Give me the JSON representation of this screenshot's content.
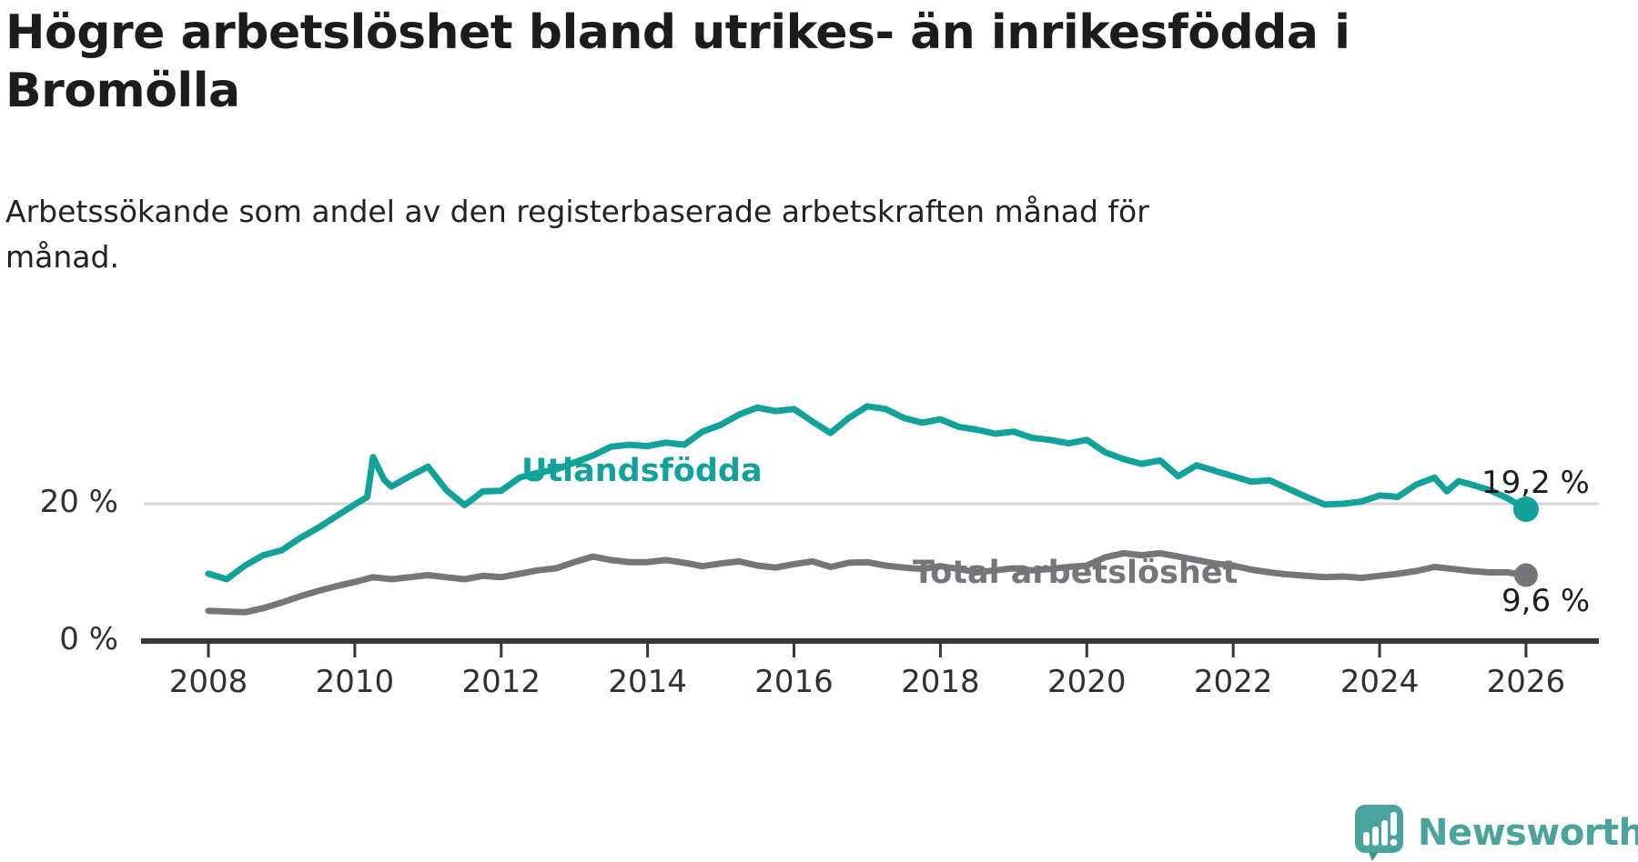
{
  "title": {
    "line1": "Högre arbetslöshet bland utrikes- än inrikesfödda i",
    "line2": "Bromölla"
  },
  "subtitle": {
    "line1": "Arbetssökande som andel av den registerbaserade arbetskraften månad för",
    "line2": "månad."
  },
  "branding": {
    "name": "Newsworthy"
  },
  "colors": {
    "teal_line": "#12a29a",
    "gray_line": "#75757a",
    "axis": "#373737",
    "grid": "#d7d7d7",
    "tick_text": "#303030",
    "value_text": "#1c1c1c",
    "logo_teal": "#4ba39d",
    "logo_tail": "#3a928c"
  },
  "chart_data": {
    "type": "line",
    "title": "Högre arbetslöshet bland utrikes- än inrikesfödda i Bromölla",
    "subtitle": "Arbetssökande som andel av den registerbaserade arbetskraften månad för månad.",
    "x_unit": "year",
    "y_unit": "%",
    "x_range": [
      2008,
      2026.3
    ],
    "ylim": [
      0,
      44
    ],
    "grid": "single horizontal gridline at 20 %",
    "legend_position": "inline labels on lines",
    "x_ticks": [
      "2008",
      "2010",
      "2012",
      "2014",
      "2016",
      "2018",
      "2020",
      "2022",
      "2024",
      "2026"
    ],
    "y_ticks": [
      {
        "value": 20,
        "label": "20 %"
      },
      {
        "value": 0,
        "label": "0 %"
      }
    ],
    "series": [
      {
        "name": "Utlandsfödda",
        "color": "#12a29a",
        "end_label": "19,2 %",
        "end_value": 19.2,
        "points": [
          [
            2008.0,
            9.8
          ],
          [
            2008.25,
            9.0
          ],
          [
            2008.5,
            11.0
          ],
          [
            2008.75,
            12.5
          ],
          [
            2009.0,
            13.2
          ],
          [
            2009.25,
            15.0
          ],
          [
            2009.5,
            16.5
          ],
          [
            2009.75,
            18.2
          ],
          [
            2010.0,
            19.9
          ],
          [
            2010.17,
            21.0
          ],
          [
            2010.25,
            26.8
          ],
          [
            2010.4,
            23.5
          ],
          [
            2010.5,
            22.5
          ],
          [
            2010.75,
            24.0
          ],
          [
            2011.0,
            25.4
          ],
          [
            2011.25,
            22.0
          ],
          [
            2011.5,
            19.8
          ],
          [
            2011.75,
            21.8
          ],
          [
            2012.0,
            21.9
          ],
          [
            2012.25,
            23.8
          ],
          [
            2012.5,
            24.5
          ],
          [
            2012.75,
            25.0
          ],
          [
            2013.0,
            26.0
          ],
          [
            2013.25,
            27.0
          ],
          [
            2013.5,
            28.3
          ],
          [
            2013.75,
            28.6
          ],
          [
            2014.0,
            28.4
          ],
          [
            2014.25,
            28.9
          ],
          [
            2014.5,
            28.6
          ],
          [
            2014.75,
            30.5
          ],
          [
            2015.0,
            31.5
          ],
          [
            2015.25,
            33.0
          ],
          [
            2015.5,
            34.0
          ],
          [
            2015.75,
            33.5
          ],
          [
            2016.0,
            33.8
          ],
          [
            2016.25,
            32.0
          ],
          [
            2016.5,
            30.3
          ],
          [
            2016.75,
            32.5
          ],
          [
            2017.0,
            34.2
          ],
          [
            2017.25,
            33.8
          ],
          [
            2017.5,
            32.5
          ],
          [
            2017.75,
            31.8
          ],
          [
            2018.0,
            32.3
          ],
          [
            2018.25,
            31.2
          ],
          [
            2018.5,
            30.8
          ],
          [
            2018.75,
            30.2
          ],
          [
            2019.0,
            30.5
          ],
          [
            2019.25,
            29.6
          ],
          [
            2019.5,
            29.3
          ],
          [
            2019.75,
            28.8
          ],
          [
            2020.0,
            29.3
          ],
          [
            2020.25,
            27.5
          ],
          [
            2020.5,
            26.5
          ],
          [
            2020.75,
            25.8
          ],
          [
            2021.0,
            26.3
          ],
          [
            2021.25,
            24.0
          ],
          [
            2021.5,
            25.6
          ],
          [
            2021.75,
            24.8
          ],
          [
            2022.0,
            24.0
          ],
          [
            2022.25,
            23.2
          ],
          [
            2022.5,
            23.4
          ],
          [
            2022.75,
            22.2
          ],
          [
            2023.0,
            21.0
          ],
          [
            2023.25,
            19.9
          ],
          [
            2023.5,
            20.0
          ],
          [
            2023.75,
            20.3
          ],
          [
            2024.0,
            21.2
          ],
          [
            2024.25,
            21.0
          ],
          [
            2024.5,
            22.8
          ],
          [
            2024.75,
            23.8
          ],
          [
            2024.92,
            21.8
          ],
          [
            2025.08,
            23.3
          ],
          [
            2025.25,
            22.8
          ],
          [
            2025.5,
            22.0
          ],
          [
            2025.75,
            20.8
          ],
          [
            2026.0,
            19.2
          ]
        ]
      },
      {
        "name": "Total arbetslöshet",
        "color": "#75757a",
        "end_label": "9,6 %",
        "end_value": 9.6,
        "points": [
          [
            2008.0,
            4.4
          ],
          [
            2008.25,
            4.3
          ],
          [
            2008.5,
            4.2
          ],
          [
            2008.75,
            4.8
          ],
          [
            2009.0,
            5.6
          ],
          [
            2009.25,
            6.5
          ],
          [
            2009.5,
            7.3
          ],
          [
            2009.75,
            8.0
          ],
          [
            2010.0,
            8.6
          ],
          [
            2010.25,
            9.3
          ],
          [
            2010.5,
            9.0
          ],
          [
            2010.75,
            9.3
          ],
          [
            2011.0,
            9.6
          ],
          [
            2011.25,
            9.3
          ],
          [
            2011.5,
            9.0
          ],
          [
            2011.75,
            9.5
          ],
          [
            2012.0,
            9.3
          ],
          [
            2012.25,
            9.8
          ],
          [
            2012.5,
            10.3
          ],
          [
            2012.75,
            10.6
          ],
          [
            2013.0,
            11.5
          ],
          [
            2013.25,
            12.3
          ],
          [
            2013.5,
            11.8
          ],
          [
            2013.75,
            11.5
          ],
          [
            2014.0,
            11.5
          ],
          [
            2014.25,
            11.8
          ],
          [
            2014.5,
            11.4
          ],
          [
            2014.75,
            10.9
          ],
          [
            2015.0,
            11.3
          ],
          [
            2015.25,
            11.6
          ],
          [
            2015.5,
            11.0
          ],
          [
            2015.75,
            10.7
          ],
          [
            2016.0,
            11.2
          ],
          [
            2016.25,
            11.6
          ],
          [
            2016.5,
            10.8
          ],
          [
            2016.75,
            11.4
          ],
          [
            2017.0,
            11.5
          ],
          [
            2017.25,
            11.0
          ],
          [
            2017.5,
            10.7
          ],
          [
            2017.75,
            10.5
          ],
          [
            2018.0,
            10.9
          ],
          [
            2018.25,
            10.5
          ],
          [
            2018.5,
            10.0
          ],
          [
            2018.75,
            10.3
          ],
          [
            2019.0,
            10.6
          ],
          [
            2019.25,
            10.3
          ],
          [
            2019.5,
            10.5
          ],
          [
            2019.75,
            10.8
          ],
          [
            2020.0,
            11.0
          ],
          [
            2020.25,
            12.2
          ],
          [
            2020.5,
            12.8
          ],
          [
            2020.75,
            12.5
          ],
          [
            2021.0,
            12.8
          ],
          [
            2021.25,
            12.3
          ],
          [
            2021.5,
            11.8
          ],
          [
            2021.75,
            11.3
          ],
          [
            2022.0,
            11.0
          ],
          [
            2022.25,
            10.4
          ],
          [
            2022.5,
            10.0
          ],
          [
            2022.75,
            9.7
          ],
          [
            2023.0,
            9.5
          ],
          [
            2023.25,
            9.3
          ],
          [
            2023.5,
            9.4
          ],
          [
            2023.75,
            9.2
          ],
          [
            2024.0,
            9.5
          ],
          [
            2024.25,
            9.8
          ],
          [
            2024.5,
            10.2
          ],
          [
            2024.75,
            10.8
          ],
          [
            2025.0,
            10.5
          ],
          [
            2025.25,
            10.2
          ],
          [
            2025.5,
            10.0
          ],
          [
            2025.75,
            10.0
          ],
          [
            2026.0,
            9.6
          ]
        ]
      }
    ]
  }
}
